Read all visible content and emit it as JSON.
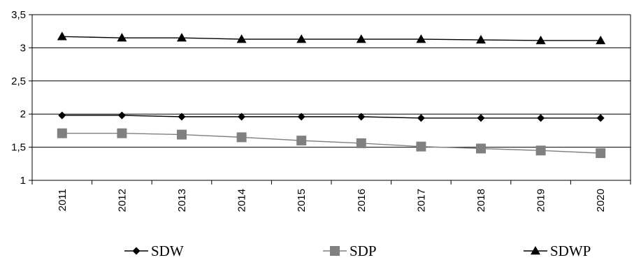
{
  "chart_data": {
    "type": "line",
    "x": [
      "2011",
      "2012",
      "2013",
      "2014",
      "2015",
      "2016",
      "2017",
      "2018",
      "2019",
      "2020"
    ],
    "ylim": [
      1,
      3.5
    ],
    "yticks": [
      "1",
      "1,5",
      "2",
      "2,5",
      "3",
      "3,5"
    ],
    "grid": "horizontal",
    "legend": "bottom",
    "series": [
      {
        "name": "SDW",
        "color": "#000000",
        "marker": "diamond",
        "values": [
          1.98,
          1.98,
          1.96,
          1.96,
          1.96,
          1.96,
          1.94,
          1.94,
          1.94,
          1.94
        ]
      },
      {
        "name": "SDP",
        "color": "#808080",
        "marker": "square",
        "values": [
          1.71,
          1.71,
          1.69,
          1.65,
          1.6,
          1.56,
          1.51,
          1.48,
          1.45,
          1.41
        ]
      },
      {
        "name": "SDWP",
        "color": "#000000",
        "marker": "triangle",
        "values": [
          3.17,
          3.15,
          3.15,
          3.13,
          3.13,
          3.13,
          3.13,
          3.12,
          3.11,
          3.11
        ]
      }
    ]
  }
}
